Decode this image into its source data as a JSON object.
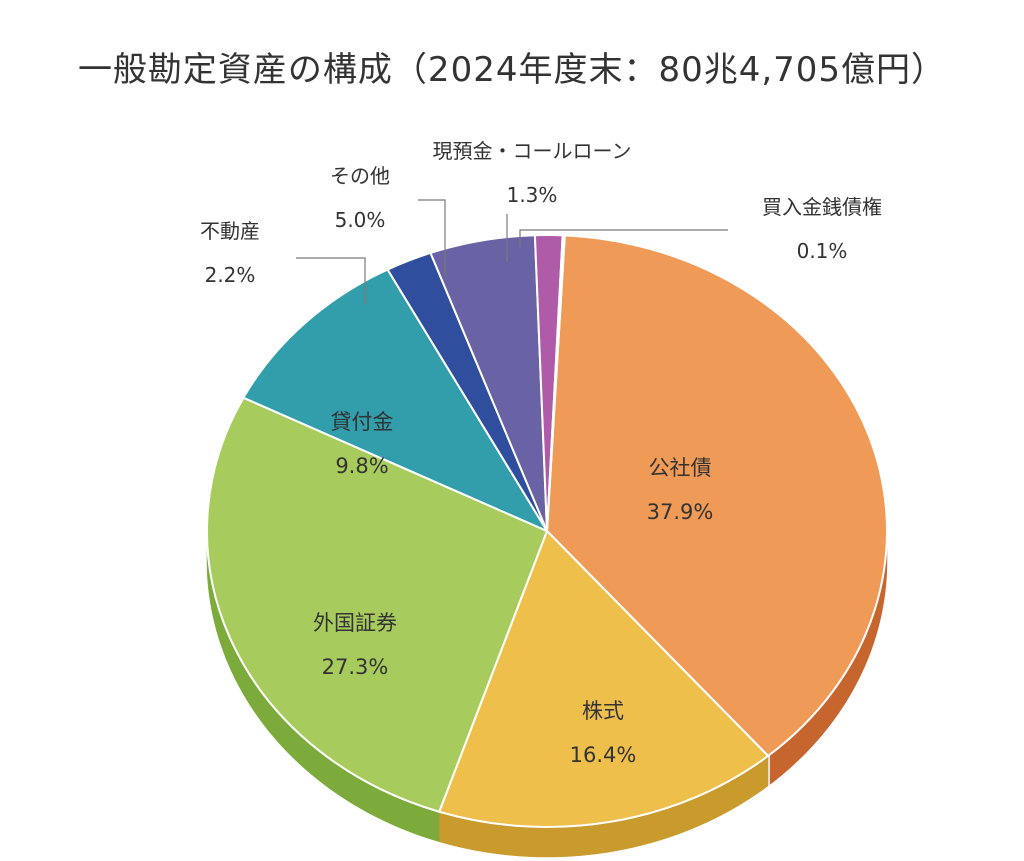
{
  "chart_data": {
    "type": "pie",
    "title": "一般勘定資産の構成（2024年度末：80兆4,705億円）",
    "slices": [
      {
        "label": "公社債",
        "value": 37.9,
        "value_label": "37.9%",
        "color": "#ef9a56",
        "side_color": "#c7652e"
      },
      {
        "label": "株式",
        "value": 16.4,
        "value_label": "16.4%",
        "color": "#efbf4b",
        "side_color": "#c99a2c"
      },
      {
        "label": "外国証券",
        "value": 27.3,
        "value_label": "27.3%",
        "color": "#a8cb5e",
        "side_color": "#7cab3c"
      },
      {
        "label": "貸付金",
        "value": 9.8,
        "value_label": "9.8%",
        "color": "#329dab",
        "side_color": "#247a86"
      },
      {
        "label": "不動産",
        "value": 2.2,
        "value_label": "2.2%",
        "color": "#2f4e9e",
        "side_color": "#223a78"
      },
      {
        "label": "その他",
        "value": 5.0,
        "value_label": "5.0%",
        "color": "#6963a6",
        "side_color": "#4f4a83"
      },
      {
        "label": "現預金・コールローン",
        "value": 1.3,
        "value_label": "1.3%",
        "color": "#b05ba8",
        "side_color": "#8a3f83"
      },
      {
        "label": "買入金銭債権",
        "value": 0.1,
        "value_label": "0.1%",
        "color": "#e9c7a2",
        "side_color": "#c9a27c"
      }
    ],
    "legend": "none",
    "labels": "callouts"
  }
}
